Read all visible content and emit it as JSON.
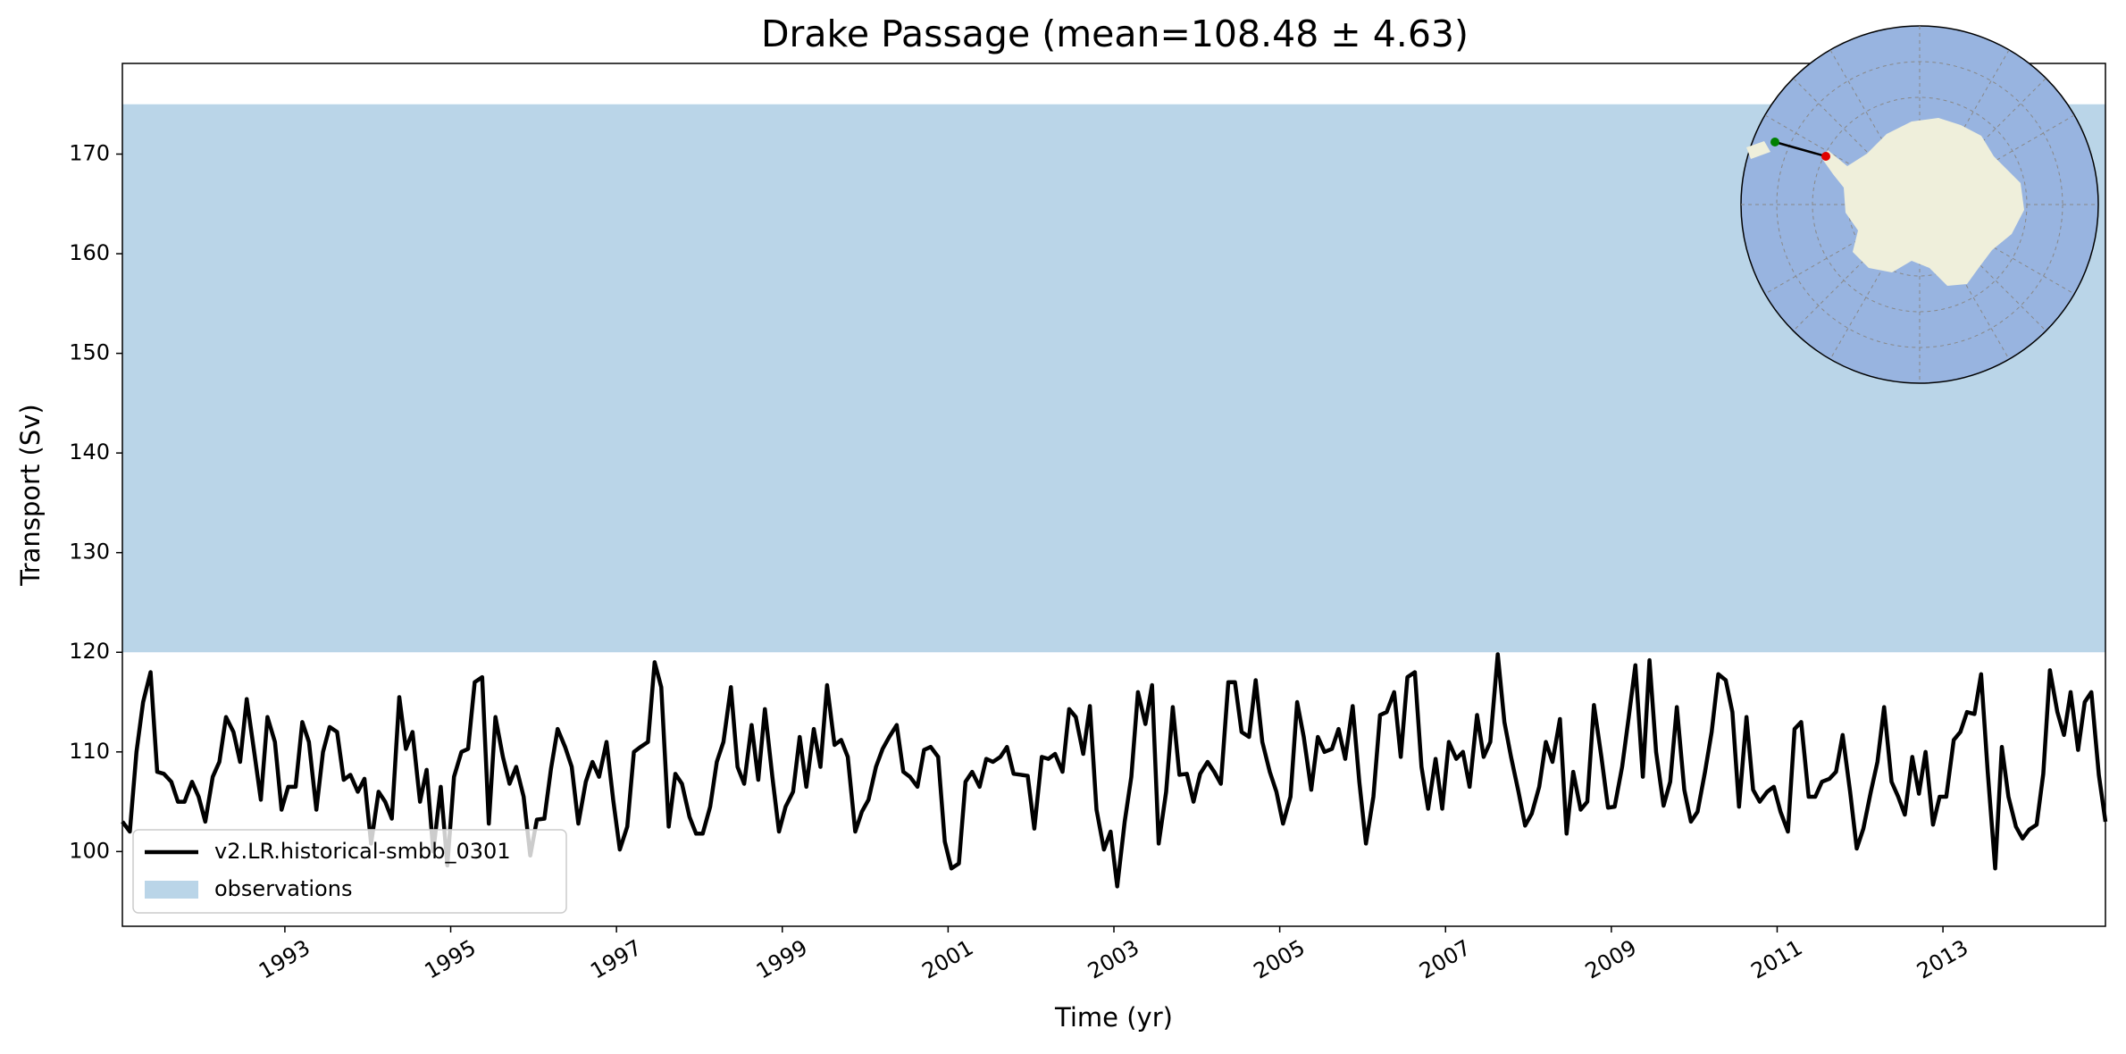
{
  "chart_data": {
    "type": "line",
    "title": "Drake Passage (mean=108.48 ± 4.63)",
    "x_label": "Time (yr)",
    "y_label": "Transport (Sv)",
    "xlim": [
      1991.04,
      2014.96
    ],
    "ylim": [
      92.5,
      179.1
    ],
    "xticks": [
      1993,
      1995,
      1997,
      1999,
      2001,
      2003,
      2005,
      2007,
      2009,
      2011,
      2013
    ],
    "yticks": [
      100,
      110,
      120,
      130,
      140,
      150,
      160,
      170
    ],
    "legend": "lower left",
    "bands": [
      {
        "name": "observations",
        "color": "#bad5e8",
        "range": [
          120,
          175
        ]
      }
    ],
    "x": [
      1991.04,
      1991.13,
      1991.21,
      1991.29,
      1991.38,
      1991.46,
      1991.54,
      1991.63,
      1991.71,
      1991.79,
      1991.88,
      1991.96,
      1992.04,
      1992.13,
      1992.21,
      1992.29,
      1992.38,
      1992.46,
      1992.54,
      1992.63,
      1992.71,
      1992.79,
      1992.88,
      1992.96,
      1993.04,
      1993.13,
      1993.21,
      1993.29,
      1993.38,
      1993.46,
      1993.54,
      1993.63,
      1993.71,
      1993.79,
      1993.88,
      1993.96,
      1994.04,
      1994.13,
      1994.21,
      1994.29,
      1994.38,
      1994.46,
      1994.54,
      1994.63,
      1994.71,
      1994.79,
      1994.88,
      1994.96,
      1995.04,
      1995.13,
      1995.21,
      1995.29,
      1995.38,
      1995.46,
      1995.54,
      1995.63,
      1995.71,
      1995.79,
      1995.88,
      1995.96,
      1996.04,
      1996.13,
      1996.21,
      1996.29,
      1996.38,
      1996.46,
      1996.54,
      1996.63,
      1996.71,
      1996.79,
      1996.88,
      1996.96,
      1997.04,
      1997.13,
      1997.21,
      1997.29,
      1997.38,
      1997.46,
      1997.54,
      1997.63,
      1997.71,
      1997.79,
      1997.88,
      1997.96,
      1998.04,
      1998.13,
      1998.21,
      1998.29,
      1998.38,
      1998.46,
      1998.54,
      1998.63,
      1998.71,
      1998.79,
      1998.88,
      1998.96,
      1999.04,
      1999.13,
      1999.21,
      1999.29,
      1999.38,
      1999.46,
      1999.54,
      1999.63,
      1999.71,
      1999.79,
      1999.88,
      1999.96,
      2000.04,
      2000.13,
      2000.21,
      2000.29,
      2000.38,
      2000.46,
      2000.54,
      2000.63,
      2000.71,
      2000.79,
      2000.88,
      2000.96,
      2001.04,
      2001.13,
      2001.21,
      2001.29,
      2001.38,
      2001.46,
      2001.54,
      2001.63,
      2001.71,
      2001.79,
      2001.88,
      2001.96,
      2002.04,
      2002.13,
      2002.21,
      2002.29,
      2002.38,
      2002.46,
      2002.54,
      2002.63,
      2002.71,
      2002.79,
      2002.88,
      2002.96,
      2003.04,
      2003.13,
      2003.21,
      2003.29,
      2003.38,
      2003.46,
      2003.54,
      2003.63,
      2003.71,
      2003.79,
      2003.88,
      2003.96,
      2004.04,
      2004.13,
      2004.21,
      2004.29,
      2004.38,
      2004.46,
      2004.54,
      2004.63,
      2004.71,
      2004.79,
      2004.88,
      2004.96,
      2005.04,
      2005.13,
      2005.21,
      2005.29,
      2005.38,
      2005.46,
      2005.54,
      2005.63,
      2005.71,
      2005.79,
      2005.88,
      2005.96,
      2006.04,
      2006.13,
      2006.21,
      2006.29,
      2006.38,
      2006.46,
      2006.54,
      2006.63,
      2006.71,
      2006.79,
      2006.88,
      2006.96,
      2007.04,
      2007.13,
      2007.21,
      2007.29,
      2007.38,
      2007.46,
      2007.54,
      2007.63,
      2007.71,
      2007.79,
      2007.88,
      2007.96,
      2008.04,
      2008.13,
      2008.21,
      2008.29,
      2008.38,
      2008.46,
      2008.54,
      2008.63,
      2008.71,
      2008.79,
      2008.88,
      2008.96,
      2009.04,
      2009.13,
      2009.21,
      2009.29,
      2009.38,
      2009.46,
      2009.54,
      2009.63,
      2009.71,
      2009.79,
      2009.88,
      2009.96,
      2010.04,
      2010.13,
      2010.21,
      2010.29,
      2010.38,
      2010.46,
      2010.54,
      2010.63,
      2010.71,
      2010.79,
      2010.88,
      2010.96,
      2011.04,
      2011.13,
      2011.21,
      2011.29,
      2011.38,
      2011.46,
      2011.54,
      2011.63,
      2011.71,
      2011.79,
      2011.88,
      2011.96,
      2012.04,
      2012.13,
      2012.21,
      2012.29,
      2012.38,
      2012.46,
      2012.54,
      2012.63,
      2012.71,
      2012.79,
      2012.88,
      2012.96,
      2013.04,
      2013.13,
      2013.21,
      2013.29,
      2013.38,
      2013.46,
      2013.54,
      2013.63,
      2013.71,
      2013.79,
      2013.88,
      2013.96,
      2014.04,
      2014.13,
      2014.21,
      2014.29,
      2014.38,
      2014.46,
      2014.54,
      2014.63,
      2014.71,
      2014.79,
      2014.88,
      2014.96
    ],
    "series": [
      {
        "name": "v2.LR.historical-smbb_0301",
        "color": "#000000",
        "values": [
          103,
          102,
          110,
          115,
          118,
          108,
          107.8,
          107,
          105,
          105,
          107,
          105.5,
          103,
          107.5,
          109,
          113.5,
          112,
          109,
          115.3,
          110,
          105.2,
          113.5,
          111,
          104.2,
          106.5,
          106.5,
          113,
          111,
          104.2,
          110,
          112.5,
          112,
          107.2,
          107.7,
          106,
          107.3,
          100.8,
          106,
          105,
          103.3,
          115.5,
          110.3,
          112,
          105,
          108.2,
          100,
          106.5,
          98.6,
          107.5,
          110,
          110.3,
          117,
          117.5,
          102.8,
          113.5,
          109.5,
          106.8,
          108.5,
          105.5,
          99.6,
          103.2,
          103.3,
          108.3,
          112.3,
          110.5,
          108.5,
          102.8,
          107,
          109,
          107.5,
          111,
          105.2,
          100.2,
          102.5,
          110,
          110.5,
          111,
          119,
          116.5,
          102.5,
          107.8,
          106.8,
          103.5,
          101.8,
          101.8,
          104.5,
          109,
          111,
          116.5,
          108.5,
          106.8,
          112.7,
          107.2,
          114.3,
          107.5,
          102,
          104.5,
          106,
          111.5,
          106.5,
          112.3,
          108.5,
          116.7,
          110.7,
          111.2,
          109.5,
          102,
          104,
          105.2,
          108.5,
          110.3,
          111.5,
          112.7,
          108,
          107.5,
          106.5,
          110.2,
          110.5,
          109.5,
          101,
          98.3,
          98.8,
          107,
          108,
          106.5,
          109.3,
          109,
          109.5,
          110.5,
          107.8,
          107.7,
          107.6,
          102.3,
          109.5,
          109.3,
          109.8,
          108,
          114.3,
          113.5,
          109.8,
          114.6,
          104.2,
          100.2,
          102,
          96.5,
          103,
          107.5,
          116,
          112.8,
          116.7,
          100.8,
          106,
          114.5,
          107.7,
          107.8,
          105,
          107.8,
          109,
          108,
          106.8,
          117,
          117,
          112,
          111.5,
          117.2,
          111,
          108,
          106,
          102.8,
          105.5,
          115,
          111.5,
          106.2,
          111.5,
          110,
          110.3,
          112.3,
          109.3,
          114.6,
          107,
          100.8,
          105.5,
          113.7,
          114,
          116,
          109.5,
          117.5,
          118,
          108.5,
          104.3,
          109.3,
          104.3,
          111,
          109.3,
          110,
          106.5,
          113.7,
          109.5,
          111,
          119.8,
          113,
          109.5,
          106,
          102.6,
          103.8,
          106.5,
          111,
          109,
          113.3,
          101.8,
          108,
          104.2,
          105,
          114.7,
          109.5,
          104.4,
          104.5,
          108.5,
          113.5,
          118.7,
          107.5,
          119.2,
          110,
          104.6,
          107,
          114.5,
          106.2,
          103,
          104,
          108,
          112,
          117.8,
          117.2,
          114,
          104.5,
          113.5,
          106.2,
          105,
          106,
          106.5,
          104,
          102,
          112.3,
          113,
          105.5,
          105.5,
          107,
          107.3,
          108,
          111.7,
          106,
          100.3,
          102.3,
          106,
          109,
          114.5,
          107,
          105.5,
          103.7,
          109.5,
          105.8,
          110,
          102.7,
          105.5,
          105.5,
          111.2,
          112,
          114,
          113.8,
          117.8,
          108,
          98.3,
          110.5,
          105.5,
          102.5,
          101.3,
          102.2,
          102.7,
          107.8,
          118.2,
          114,
          111.7,
          116,
          110.2,
          115,
          116,
          107.7,
          103
        ]
      }
    ]
  }
}
